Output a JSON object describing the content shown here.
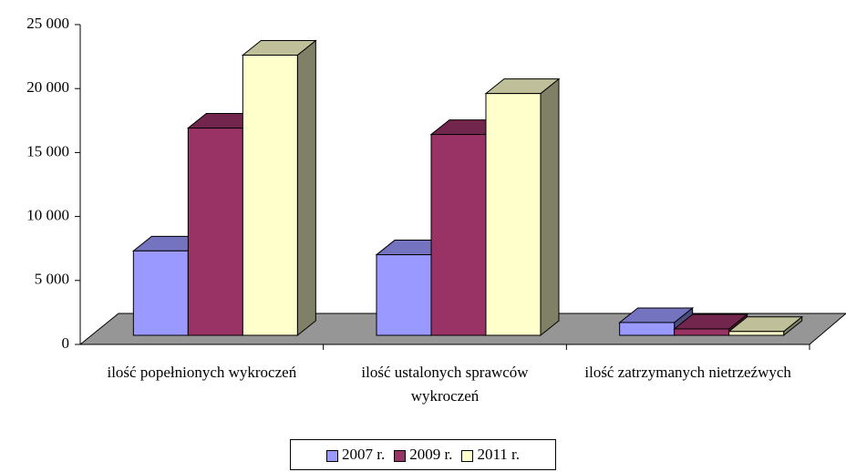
{
  "chart_data": {
    "type": "bar3d",
    "categories": [
      "ilość popełnionych wykroczeń",
      "ilość ustalonych sprawców wykroczeń",
      "ilość zatrzymanych nietrzeźwych"
    ],
    "series": [
      {
        "name": "2007 r.",
        "color": "#9999ff",
        "values": [
          6600,
          6300,
          1000
        ]
      },
      {
        "name": "2009 r.",
        "color": "#993366",
        "values": [
          16200,
          15700,
          500
        ]
      },
      {
        "name": "2011 r.",
        "color": "#ffffcc",
        "values": [
          21900,
          18900,
          300
        ]
      }
    ],
    "ylim": [
      0,
      25000
    ],
    "yticks": [
      0,
      {
        "value": 5000,
        "label": "5 000"
      },
      {
        "value": 10000,
        "label": "10 000"
      },
      {
        "value": 15000,
        "label": "15 000"
      },
      {
        "value": 20000,
        "label": "20 000"
      },
      {
        "value": 25000,
        "label": "25 000"
      }
    ],
    "legend": "bottom"
  }
}
